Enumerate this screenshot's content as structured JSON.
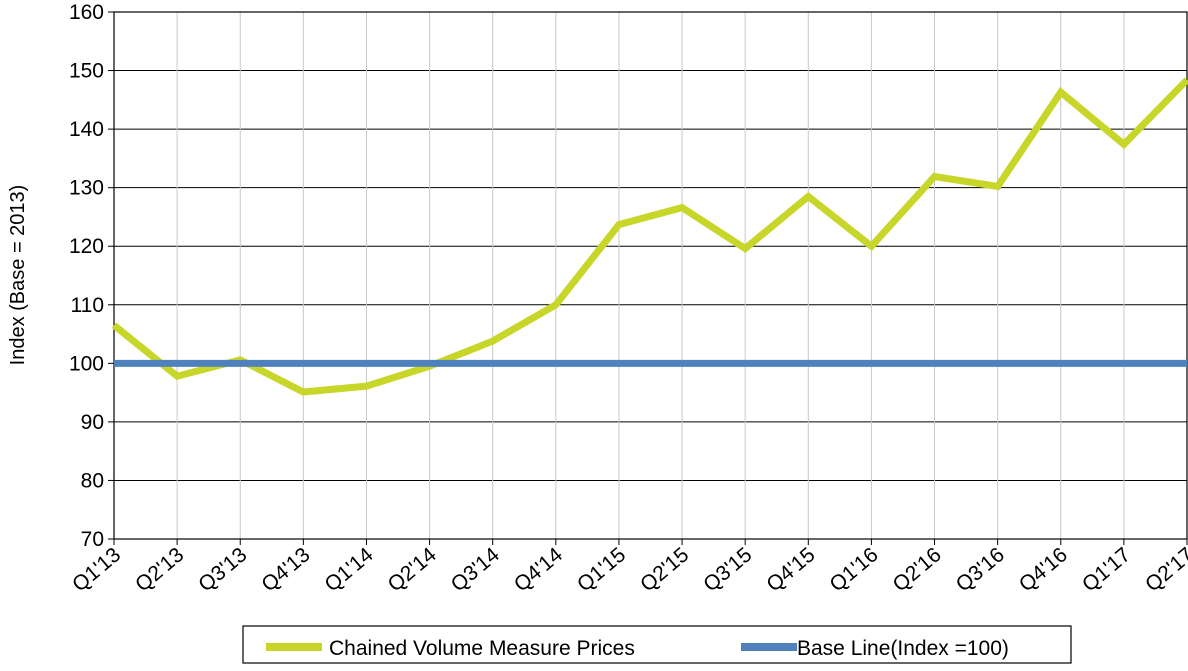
{
  "chart_data": {
    "type": "line",
    "ylabel": "Index (Base = 2013)",
    "xlabel": "",
    "ylim": [
      70,
      160
    ],
    "y_ticks": [
      70,
      80,
      90,
      100,
      110,
      120,
      130,
      140,
      150,
      160
    ],
    "categories": [
      "Q1'13",
      "Q2'13",
      "Q3'13",
      "Q4'13",
      "Q1'14",
      "Q2'14",
      "Q3'14",
      "Q4'14",
      "Q1'15",
      "Q2'15",
      "Q3'15",
      "Q4'15",
      "Q1'16",
      "Q2'16",
      "Q3'16",
      "Q4'16",
      "Q1'17",
      "Q2'17"
    ],
    "grid": {
      "horizontal": true,
      "vertical": true
    },
    "legend_position": "bottom",
    "series": [
      {
        "name": "Chained Volume Measure Prices",
        "color": "#c8d62a",
        "values": [
          106.5,
          97.8,
          100.6,
          95.1,
          96.1,
          99.5,
          103.8,
          110.0,
          123.7,
          126.6,
          119.6,
          128.5,
          120.0,
          131.9,
          130.2,
          146.3,
          137.4,
          148.4
        ]
      },
      {
        "name": "Base Line(Index =100)",
        "color": "#4f81bd",
        "values": [
          100,
          100,
          100,
          100,
          100,
          100,
          100,
          100,
          100,
          100,
          100,
          100,
          100,
          100,
          100,
          100,
          100,
          100
        ]
      }
    ]
  }
}
